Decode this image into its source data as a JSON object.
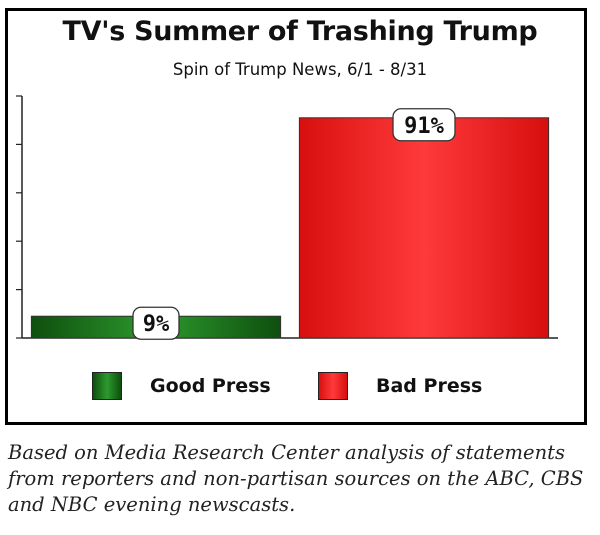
{
  "chart_data": {
    "type": "bar",
    "title": "TV's Summer of Trashing Trump",
    "subtitle": "Spin of Trump News, 6/1 - 8/31",
    "categories": [
      "Good Press",
      "Bad Press"
    ],
    "values": [
      9,
      91
    ],
    "data_labels": [
      "9%",
      "91%"
    ],
    "colors": [
      "#1f7a1f",
      "#e81818"
    ],
    "ylim": [
      0,
      100
    ],
    "grid": false,
    "legend": {
      "placement": "bottom",
      "entries": [
        {
          "label": "Good Press",
          "color": "#1f7a1f"
        },
        {
          "label": "Bad Press",
          "color": "#e81818"
        }
      ]
    }
  },
  "caption": "Based on Media Research Center analysis of statements from reporters and non-partisan sources on the ABC, CBS and NBC evening newscasts."
}
